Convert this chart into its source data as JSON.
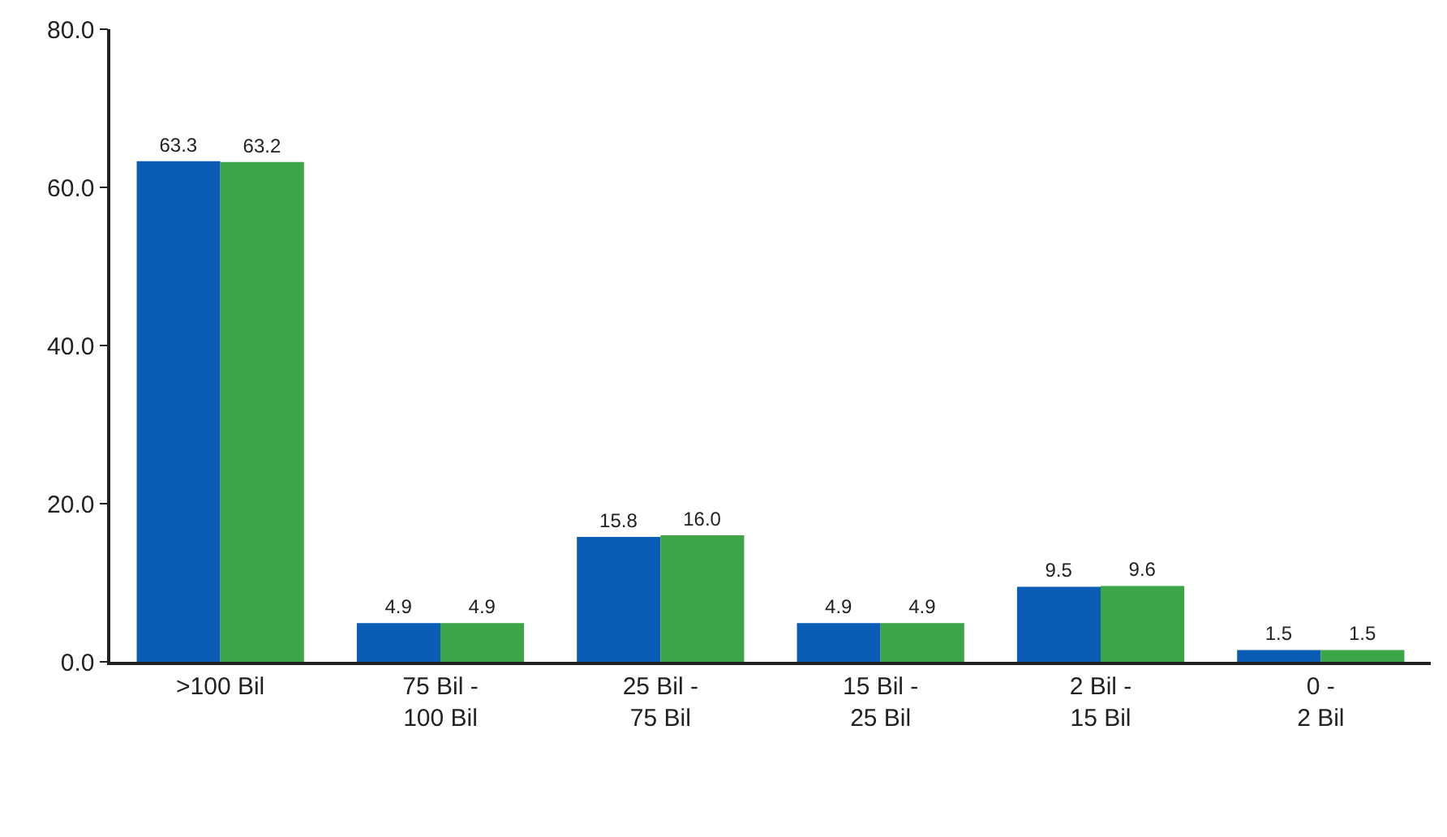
{
  "chart_data": {
    "type": "bar",
    "categories": [
      ">100 Bil",
      "75 Bil -\n100 Bil",
      "25 Bil -\n75 Bil",
      "15 Bil -\n25 Bil",
      "2 Bil -\n15 Bil",
      "0 -\n2 Bil"
    ],
    "series": [
      {
        "color": "#0b5cb5",
        "values": [
          63.3,
          4.9,
          15.8,
          4.9,
          9.5,
          1.5
        ],
        "value_labels": [
          "63.3",
          "4.9",
          "15.8",
          "4.9",
          "9.5",
          "1.5"
        ]
      },
      {
        "color": "#3ba547",
        "values": [
          63.2,
          4.9,
          16.0,
          4.9,
          9.6,
          1.5
        ],
        "value_labels": [
          "63.2",
          "4.9",
          "16.0",
          "4.9",
          "9.6",
          "1.5"
        ]
      }
    ],
    "ylim": [
      0,
      80
    ],
    "yticks": [
      {
        "value": 0,
        "label": "0.0"
      },
      {
        "value": 20,
        "label": "20.0"
      },
      {
        "value": 40,
        "label": "40.0"
      },
      {
        "value": 60,
        "label": "60.0"
      },
      {
        "value": 80,
        "label": "80.0"
      }
    ],
    "grid": false
  }
}
